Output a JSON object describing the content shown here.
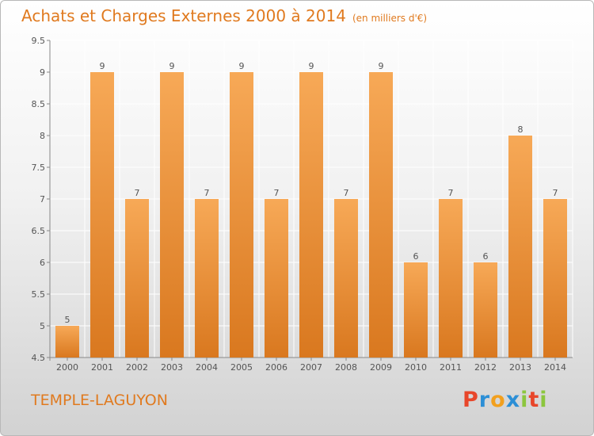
{
  "title": "Achats et Charges Externes 2000 à 2014",
  "subtitle": "(en milliers d'€)",
  "location": "TEMPLE-LAGUYON",
  "brand": {
    "letters": [
      "P",
      "r",
      "o",
      "x",
      "i",
      "t",
      "i"
    ],
    "colors": [
      "#e8462a",
      "#2c8fd6",
      "#f2a01e",
      "#2c8fd6",
      "#8cc63e",
      "#e8462a",
      "#8cc63e"
    ]
  },
  "chart_data": {
    "type": "bar",
    "categories": [
      "2000",
      "2001",
      "2002",
      "2003",
      "2004",
      "2005",
      "2006",
      "2007",
      "2008",
      "2009",
      "2010",
      "2011",
      "2012",
      "2013",
      "2014"
    ],
    "values": [
      5,
      9,
      7,
      9,
      7,
      9,
      7,
      9,
      7,
      9,
      6,
      7,
      6,
      8,
      7
    ],
    "data_labels": [
      "5",
      "9",
      "7",
      "9",
      "7",
      "9",
      "7",
      "9",
      "7",
      "9",
      "6",
      "7",
      "6",
      "8",
      "7"
    ],
    "yticks": [
      "4.5",
      "5",
      "5.5",
      "6",
      "6.5",
      "7",
      "7.5",
      "8",
      "8.5",
      "9",
      "9.5"
    ],
    "ylim": [
      4.5,
      9.5
    ],
    "grid": true,
    "colors": {
      "bar_top": "#f7a957",
      "bar_bottom": "#d9781f",
      "grid": "#ffffff",
      "axis_text": "#555555"
    }
  }
}
